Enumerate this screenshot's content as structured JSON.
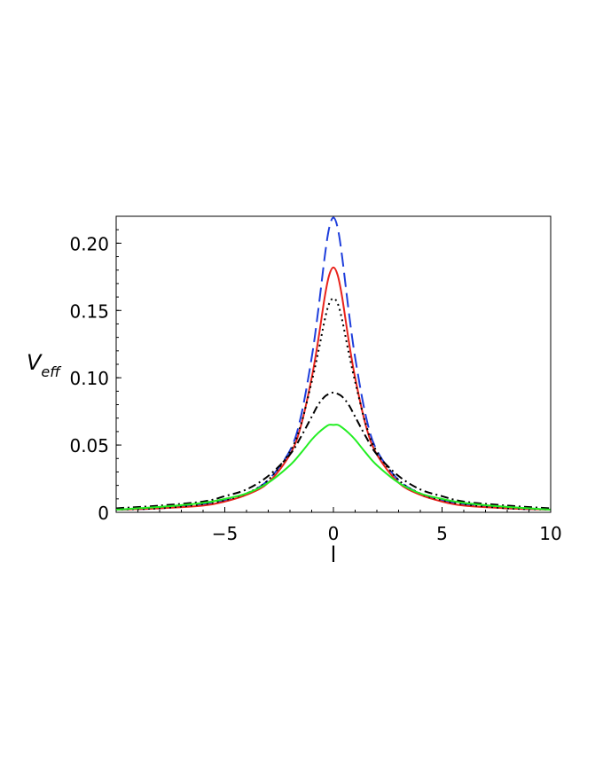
{
  "chart_data": {
    "type": "line",
    "xlabel": "l",
    "ylabel": {
      "main": "V",
      "sub": "eff"
    },
    "xlim": [
      -10,
      10
    ],
    "ylim": [
      0,
      0.22
    ],
    "x_ticks": [
      {
        "value": -5,
        "label": "−5"
      },
      {
        "value": 0,
        "label": "0"
      },
      {
        "value": 5,
        "label": "5"
      },
      {
        "value": 10,
        "label": "10"
      }
    ],
    "y_ticks": [
      {
        "value": 0,
        "label": "0"
      },
      {
        "value": 0.05,
        "label": "0.05"
      },
      {
        "value": 0.1,
        "label": "0.10"
      },
      {
        "value": 0.15,
        "label": "0.15"
      },
      {
        "value": 0.2,
        "label": "0.20"
      }
    ],
    "grid": false,
    "legend": "none",
    "series": [
      {
        "color": "#1f3fdc",
        "style": "dashed",
        "points": [
          [
            -10,
            0.002
          ],
          [
            -8,
            0.003
          ],
          [
            -6,
            0.006
          ],
          [
            -5,
            0.009
          ],
          [
            -4,
            0.014
          ],
          [
            -3,
            0.024
          ],
          [
            -2,
            0.046
          ],
          [
            -1.5,
            0.071
          ],
          [
            -1,
            0.115
          ],
          [
            -0.7,
            0.15
          ],
          [
            -0.4,
            0.19
          ],
          [
            -0.2,
            0.211
          ],
          [
            0,
            0.219
          ],
          [
            0.2,
            0.211
          ],
          [
            0.4,
            0.19
          ],
          [
            0.7,
            0.15
          ],
          [
            1,
            0.115
          ],
          [
            1.5,
            0.071
          ],
          [
            2,
            0.046
          ],
          [
            3,
            0.024
          ],
          [
            4,
            0.014
          ],
          [
            5,
            0.009
          ],
          [
            6,
            0.006
          ],
          [
            8,
            0.003
          ],
          [
            10,
            0.002
          ]
        ]
      },
      {
        "color": "#e8231c",
        "style": "solid",
        "points": [
          [
            -10,
            0.002
          ],
          [
            -8,
            0.003
          ],
          [
            -6,
            0.005
          ],
          [
            -5,
            0.008
          ],
          [
            -4,
            0.013
          ],
          [
            -3,
            0.022
          ],
          [
            -2,
            0.043
          ],
          [
            -1.5,
            0.064
          ],
          [
            -1,
            0.1
          ],
          [
            -0.7,
            0.128
          ],
          [
            -0.4,
            0.16
          ],
          [
            -0.2,
            0.176
          ],
          [
            0,
            0.182
          ],
          [
            0.2,
            0.176
          ],
          [
            0.4,
            0.16
          ],
          [
            0.7,
            0.128
          ],
          [
            1,
            0.1
          ],
          [
            1.5,
            0.064
          ],
          [
            2,
            0.043
          ],
          [
            3,
            0.022
          ],
          [
            4,
            0.013
          ],
          [
            5,
            0.008
          ],
          [
            6,
            0.005
          ],
          [
            8,
            0.003
          ],
          [
            10,
            0.002
          ]
        ]
      },
      {
        "color": "#000000",
        "style": "dotted",
        "points": [
          [
            -10,
            0.002
          ],
          [
            -8,
            0.003
          ],
          [
            -6,
            0.006
          ],
          [
            -5,
            0.009
          ],
          [
            -4,
            0.014
          ],
          [
            -3,
            0.024
          ],
          [
            -2,
            0.045
          ],
          [
            -1.5,
            0.065
          ],
          [
            -1,
            0.097
          ],
          [
            -0.7,
            0.119
          ],
          [
            -0.4,
            0.143
          ],
          [
            -0.2,
            0.155
          ],
          [
            0,
            0.159
          ],
          [
            0.2,
            0.155
          ],
          [
            0.4,
            0.143
          ],
          [
            0.7,
            0.119
          ],
          [
            1,
            0.097
          ],
          [
            1.5,
            0.065
          ],
          [
            2,
            0.045
          ],
          [
            3,
            0.024
          ],
          [
            4,
            0.014
          ],
          [
            5,
            0.009
          ],
          [
            6,
            0.006
          ],
          [
            8,
            0.003
          ],
          [
            10,
            0.002
          ]
        ]
      },
      {
        "color": "#000000",
        "style": "dashdot",
        "points": [
          [
            -10,
            0.003
          ],
          [
            -8,
            0.005
          ],
          [
            -6,
            0.008
          ],
          [
            -5,
            0.012
          ],
          [
            -4,
            0.017
          ],
          [
            -3,
            0.027
          ],
          [
            -2,
            0.043
          ],
          [
            -1.5,
            0.056
          ],
          [
            -1,
            0.071
          ],
          [
            -0.7,
            0.08
          ],
          [
            -0.4,
            0.086
          ],
          [
            -0.2,
            0.088
          ],
          [
            0,
            0.089
          ],
          [
            0.2,
            0.088
          ],
          [
            0.4,
            0.086
          ],
          [
            0.7,
            0.08
          ],
          [
            1,
            0.071
          ],
          [
            1.5,
            0.056
          ],
          [
            2,
            0.043
          ],
          [
            3,
            0.027
          ],
          [
            4,
            0.017
          ],
          [
            5,
            0.012
          ],
          [
            6,
            0.008
          ],
          [
            8,
            0.005
          ],
          [
            10,
            0.003
          ]
        ]
      },
      {
        "color": "#22ee22",
        "style": "solid",
        "points": [
          [
            -10,
            0.002
          ],
          [
            -8,
            0.004
          ],
          [
            -6,
            0.007
          ],
          [
            -5,
            0.01
          ],
          [
            -4,
            0.014
          ],
          [
            -3,
            0.022
          ],
          [
            -2,
            0.035
          ],
          [
            -1.5,
            0.044
          ],
          [
            -1,
            0.054
          ],
          [
            -0.7,
            0.059
          ],
          [
            -0.4,
            0.063
          ],
          [
            -0.2,
            0.065
          ],
          [
            0,
            0.065
          ],
          [
            0.2,
            0.065
          ],
          [
            0.4,
            0.063
          ],
          [
            0.7,
            0.059
          ],
          [
            1,
            0.054
          ],
          [
            1.5,
            0.044
          ],
          [
            2,
            0.035
          ],
          [
            3,
            0.022
          ],
          [
            4,
            0.014
          ],
          [
            5,
            0.01
          ],
          [
            6,
            0.007
          ],
          [
            8,
            0.004
          ],
          [
            10,
            0.002
          ]
        ]
      }
    ]
  }
}
